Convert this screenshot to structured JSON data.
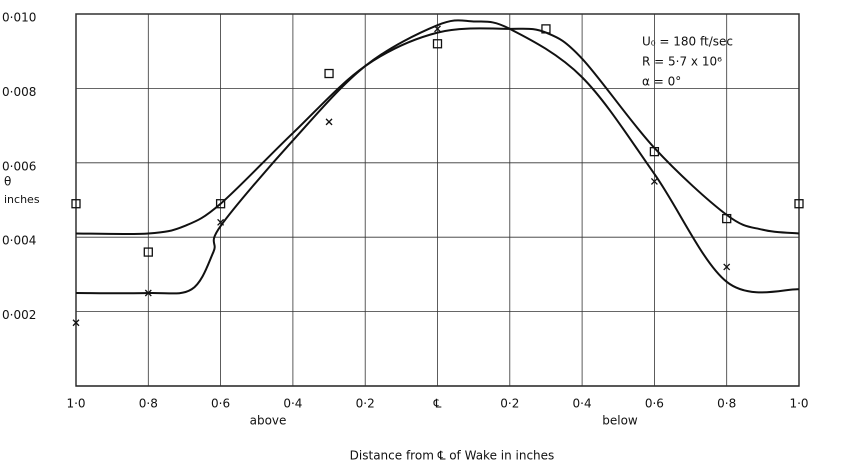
{
  "chart_data": {
    "type": "line",
    "ylabel": [
      "θ",
      "inches"
    ],
    "xlabel": "Distance from ℄ of Wake in inches",
    "xlim": [
      -1.0,
      1.0
    ],
    "ylim": [
      0,
      0.01
    ],
    "xticks": [
      {
        "value": -1.0,
        "label": "1·0"
      },
      {
        "value": -0.8,
        "label": "0·8"
      },
      {
        "value": -0.6,
        "label": "0·6"
      },
      {
        "value": -0.4,
        "label": "0·4"
      },
      {
        "value": -0.2,
        "label": "0·2"
      },
      {
        "value": 0,
        "label": "℄"
      },
      {
        "value": 0.2,
        "label": "0·2"
      },
      {
        "value": 0.4,
        "label": "0·4"
      },
      {
        "value": 0.6,
        "label": "0·6"
      },
      {
        "value": 0.8,
        "label": "0·8"
      },
      {
        "value": 1.0,
        "label": "1·0"
      }
    ],
    "yticks": [
      {
        "value": 0.002,
        "label": "0·002"
      },
      {
        "value": 0.004,
        "label": "0·004"
      },
      {
        "value": 0.006,
        "label": "0·006"
      },
      {
        "value": 0.008,
        "label": "0·008"
      },
      {
        "value": 0.01,
        "label": "0·010"
      }
    ],
    "grid": true,
    "side_labels": [
      "above",
      "below"
    ],
    "annotations": [
      "U₀ = 180 ft/sec",
      "R = 5·7 x 10⁶",
      "α = 0°"
    ],
    "series": [
      {
        "marker": "square",
        "color": "#111111",
        "x": [
          -1.0,
          -0.8,
          -0.6,
          -0.3,
          0,
          0.3,
          0.6,
          0.8,
          1.0
        ],
        "values": [
          0.0049,
          0.0036,
          0.0049,
          0.0084,
          0.0092,
          0.0096,
          0.0063,
          0.0045,
          0.0049
        ]
      },
      {
        "marker": "cross",
        "color": "#111111",
        "x": [
          -1.0,
          -0.8,
          -0.6,
          -0.3,
          0,
          0.6,
          0.8
        ],
        "values": [
          0.0017,
          0.0025,
          0.0044,
          0.0071,
          0.0096,
          0.0055,
          0.0032
        ]
      },
      {
        "marker": "none",
        "color": "#111111",
        "x": [
          -1.0,
          -0.8,
          -0.7,
          -0.6,
          -0.4,
          -0.2,
          0,
          0.2,
          0.3,
          0.4,
          0.6,
          0.8,
          0.9,
          1.0
        ],
        "values": [
          0.0041,
          0.0041,
          0.0043,
          0.0049,
          0.0068,
          0.0086,
          0.0095,
          0.0096,
          0.0095,
          0.0088,
          0.0064,
          0.0046,
          0.0042,
          0.0041
        ]
      },
      {
        "marker": "none",
        "color": "#111111",
        "x": [
          -1.0,
          -0.8,
          -0.68,
          -0.62,
          -0.6,
          -0.4,
          -0.2,
          0,
          0.1,
          0.2,
          0.4,
          0.6,
          0.8,
          1.0
        ],
        "values": [
          0.0025,
          0.0025,
          0.0026,
          0.0036,
          0.0043,
          0.0066,
          0.0086,
          0.0097,
          0.0098,
          0.0096,
          0.0083,
          0.0057,
          0.0028,
          0.0026
        ]
      }
    ]
  }
}
